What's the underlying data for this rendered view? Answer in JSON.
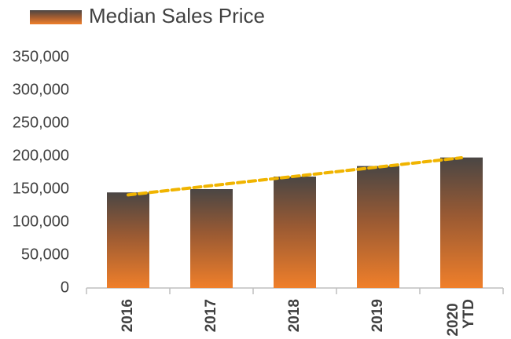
{
  "chart_data": {
    "type": "bar",
    "title": "Median Sales Price",
    "categories": [
      "2016",
      "2017",
      "2018",
      "2019",
      "2020 YTD"
    ],
    "values": [
      145000,
      150000,
      169000,
      185000,
      198000
    ],
    "color": "#f07f2a",
    "trendline_color": "#f0b400",
    "ylim": [
      0,
      350000
    ],
    "yticks": [
      0,
      {
        "value": 50000,
        "label": "50,000"
      },
      {
        "value": 100000,
        "label": "100,000"
      },
      {
        "value": 150000,
        "label": "150,000"
      },
      {
        "value": 200000,
        "label": "200,000"
      },
      {
        "value": 250000,
        "label": "250,000"
      },
      {
        "value": 300000,
        "label": "300,000"
      },
      {
        "value": 350000,
        "label": "350,000"
      }
    ],
    "grid": false
  }
}
